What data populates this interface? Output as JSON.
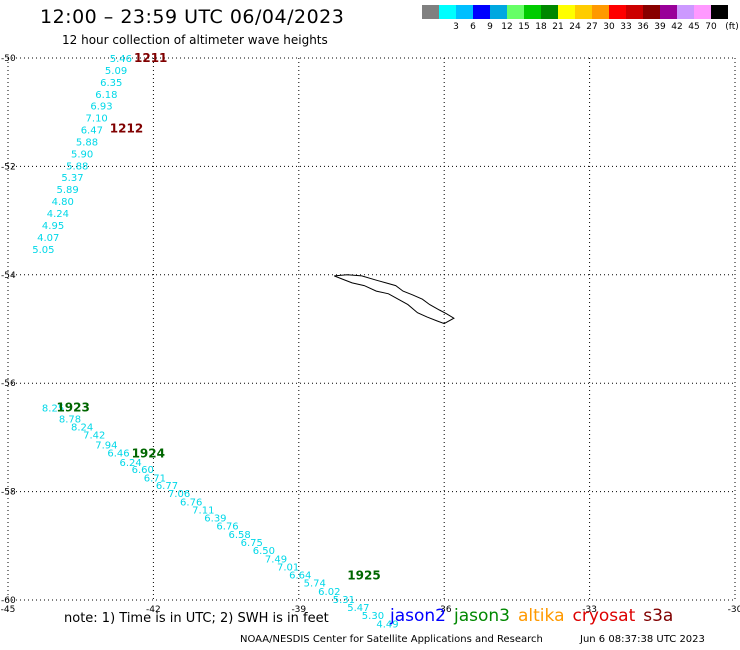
{
  "header": {
    "title": "12:00 – 23:59 UTC 06/04/2023",
    "subtitle": "12 hour collection of altimeter wave heights"
  },
  "legend": {
    "unit": "(ft)",
    "bins": [
      {
        "color": "#808080",
        "label": ""
      },
      {
        "color": "#00ffff",
        "label": "3"
      },
      {
        "color": "#00bfff",
        "label": "6"
      },
      {
        "color": "#0000ff",
        "label": "9"
      },
      {
        "color": "#00a8e0",
        "label": "12"
      },
      {
        "color": "#66ff66",
        "label": "15"
      },
      {
        "color": "#00cc00",
        "label": "18"
      },
      {
        "color": "#008800",
        "label": "21"
      },
      {
        "color": "#ffff00",
        "label": "24"
      },
      {
        "color": "#ffcc00",
        "label": "27"
      },
      {
        "color": "#ff9900",
        "label": "30"
      },
      {
        "color": "#ff0000",
        "label": "33"
      },
      {
        "color": "#cc0000",
        "label": "36"
      },
      {
        "color": "#880000",
        "label": "39"
      },
      {
        "color": "#990099",
        "label": "42"
      },
      {
        "color": "#cc99ff",
        "label": "45"
      },
      {
        "color": "#ff99ff",
        "label": "70"
      },
      {
        "color": "#000000",
        "label": ""
      }
    ]
  },
  "map": {
    "lon_range": [
      -45,
      -30
    ],
    "lat_range": [
      -60,
      -50
    ],
    "lon_ticks": [
      "-45",
      "-42",
      "-39",
      "-36",
      "-33",
      "-30"
    ],
    "lat_ticks": [
      "-50",
      "-52",
      "-54",
      "-56",
      "-58",
      "-60"
    ],
    "track_color": "#00d8e8",
    "tracks": [
      {
        "color": "#00d8e8",
        "points": [
          {
            "lon": -42.9,
            "lat": -50.0,
            "swh": "5.46"
          },
          {
            "lon": -43.0,
            "lat": -50.22,
            "swh": "5.09"
          },
          {
            "lon": -43.1,
            "lat": -50.44,
            "swh": "6.35"
          },
          {
            "lon": -43.2,
            "lat": -50.66,
            "swh": "6.18"
          },
          {
            "lon": -43.3,
            "lat": -50.88,
            "swh": "6.93"
          },
          {
            "lon": -43.4,
            "lat": -51.1,
            "swh": "7.10"
          },
          {
            "lon": -43.5,
            "lat": -51.32,
            "swh": "6.47"
          },
          {
            "lon": -43.6,
            "lat": -51.54,
            "swh": "5.88"
          },
          {
            "lon": -43.7,
            "lat": -51.76,
            "swh": "5.90"
          },
          {
            "lon": -43.8,
            "lat": -51.98,
            "swh": "5.88"
          },
          {
            "lon": -43.9,
            "lat": -52.2,
            "swh": "5.37"
          },
          {
            "lon": -44.0,
            "lat": -52.42,
            "swh": "5.89"
          },
          {
            "lon": -44.1,
            "lat": -52.64,
            "swh": "4.80"
          },
          {
            "lon": -44.2,
            "lat": -52.86,
            "swh": "4.24"
          },
          {
            "lon": -44.3,
            "lat": -53.08,
            "swh": "4.95"
          },
          {
            "lon": -44.4,
            "lat": -53.3,
            "swh": "4.07"
          },
          {
            "lon": -44.5,
            "lat": -53.52,
            "swh": "5.05"
          }
        ]
      },
      {
        "color": "#00d8e8",
        "points": [
          {
            "lon": -44.3,
            "lat": -56.45,
            "swh": "8.25"
          },
          {
            "lon": -43.95,
            "lat": -56.65,
            "swh": "8.78"
          },
          {
            "lon": -43.7,
            "lat": -56.8,
            "swh": "8.24"
          },
          {
            "lon": -43.45,
            "lat": -56.95,
            "swh": "7.42"
          },
          {
            "lon": -43.2,
            "lat": -57.13,
            "swh": "7.94"
          },
          {
            "lon": -42.95,
            "lat": -57.28,
            "swh": "6.46"
          },
          {
            "lon": -42.7,
            "lat": -57.45,
            "swh": "6.24"
          },
          {
            "lon": -42.45,
            "lat": -57.58,
            "swh": "6.60"
          },
          {
            "lon": -42.2,
            "lat": -57.74,
            "swh": "6.71"
          },
          {
            "lon": -41.95,
            "lat": -57.88,
            "swh": "6.77"
          },
          {
            "lon": -41.7,
            "lat": -58.03,
            "swh": "7.06"
          },
          {
            "lon": -41.45,
            "lat": -58.18,
            "swh": "6.76"
          },
          {
            "lon": -41.2,
            "lat": -58.33,
            "swh": "7.11"
          },
          {
            "lon": -40.95,
            "lat": -58.48,
            "swh": "6.39"
          },
          {
            "lon": -40.7,
            "lat": -58.63,
            "swh": "6.76"
          },
          {
            "lon": -40.45,
            "lat": -58.78,
            "swh": "6.58"
          },
          {
            "lon": -40.2,
            "lat": -58.93,
            "swh": "6.75"
          },
          {
            "lon": -39.95,
            "lat": -59.08,
            "swh": "6.50"
          },
          {
            "lon": -39.7,
            "lat": -59.23,
            "swh": "7.49"
          },
          {
            "lon": -39.45,
            "lat": -59.38,
            "swh": "7.01"
          },
          {
            "lon": -39.2,
            "lat": -59.53,
            "swh": "6.64"
          },
          {
            "lon": -38.9,
            "lat": -59.68,
            "swh": "5.74"
          },
          {
            "lon": -38.6,
            "lat": -59.83,
            "swh": "6.02"
          },
          {
            "lon": -38.3,
            "lat": -59.98,
            "swh": "5.31"
          },
          {
            "lon": -38.0,
            "lat": -60.13,
            "swh": "5.47"
          },
          {
            "lon": -37.7,
            "lat": -60.28,
            "swh": "5.30"
          },
          {
            "lon": -37.4,
            "lat": -60.43,
            "swh": "4.49"
          }
        ]
      }
    ],
    "time_labels": [
      {
        "text": "1211",
        "lon": -42.4,
        "lat": -50.0,
        "color": "#800000"
      },
      {
        "text": "1212",
        "lon": -42.9,
        "lat": -51.3,
        "color": "#800000"
      },
      {
        "text": "1923",
        "lon": -44.0,
        "lat": -56.45,
        "color": "#006600"
      },
      {
        "text": "1924",
        "lon": -42.45,
        "lat": -57.3,
        "color": "#006600"
      },
      {
        "text": "1925",
        "lon": -38.0,
        "lat": -59.55,
        "color": "#006600"
      }
    ],
    "coastline": [
      [
        -38.27,
        -54.02
      ],
      [
        -38.0,
        -54.0
      ],
      [
        -37.7,
        -54.02
      ],
      [
        -37.4,
        -54.1
      ],
      [
        -37.2,
        -54.15
      ],
      [
        -37.0,
        -54.2
      ],
      [
        -36.85,
        -54.3
      ],
      [
        -36.65,
        -54.37
      ],
      [
        -36.45,
        -54.45
      ],
      [
        -36.3,
        -54.55
      ],
      [
        -36.1,
        -54.65
      ],
      [
        -35.95,
        -54.72
      ],
      [
        -35.8,
        -54.8
      ],
      [
        -36.0,
        -54.9
      ],
      [
        -36.15,
        -54.85
      ],
      [
        -36.35,
        -54.78
      ],
      [
        -36.55,
        -54.7
      ],
      [
        -36.75,
        -54.55
      ],
      [
        -36.95,
        -54.45
      ],
      [
        -37.15,
        -54.35
      ],
      [
        -37.4,
        -54.3
      ],
      [
        -37.65,
        -54.2
      ],
      [
        -37.9,
        -54.15
      ],
      [
        -38.1,
        -54.08
      ],
      [
        -38.27,
        -54.02
      ]
    ]
  },
  "footer": {
    "note": "note:  1) Time is in UTC;  2) SWH is in feet",
    "satellites": [
      {
        "name": "jason2",
        "color": "#0000ff"
      },
      {
        "name": "jason3",
        "color": "#008800"
      },
      {
        "name": "altika",
        "color": "#ff9900"
      },
      {
        "name": "cryosat",
        "color": "#dd0000"
      },
      {
        "name": "s3a",
        "color": "#800000"
      }
    ],
    "credit": "NOAA/NESDIS Center for Satellite Applications and Research",
    "timestamp": "Jun  6 08:37:38 UTC 2023"
  }
}
